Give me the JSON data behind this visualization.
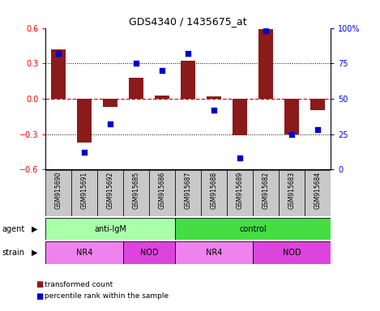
{
  "title": "GDS4340 / 1435675_at",
  "samples": [
    "GSM915690",
    "GSM915691",
    "GSM915692",
    "GSM915685",
    "GSM915686",
    "GSM915687",
    "GSM915688",
    "GSM915689",
    "GSM915682",
    "GSM915683",
    "GSM915684"
  ],
  "bar_values": [
    0.42,
    -0.37,
    -0.07,
    0.18,
    0.03,
    0.32,
    0.02,
    -0.31,
    0.59,
    -0.3,
    -0.1
  ],
  "dot_values": [
    82,
    12,
    32,
    75,
    70,
    82,
    42,
    8,
    98,
    25,
    28
  ],
  "bar_color": "#8B1A1A",
  "dot_color": "#0000CC",
  "ylim_left": [
    -0.6,
    0.6
  ],
  "ylim_right": [
    0,
    100
  ],
  "yticks_left": [
    -0.6,
    -0.3,
    0.0,
    0.3,
    0.6
  ],
  "yticks_right": [
    0,
    25,
    50,
    75,
    100
  ],
  "ytick_labels_right": [
    "0",
    "25",
    "50",
    "75",
    "100%"
  ],
  "hlines_dotted": [
    -0.3,
    0.3
  ],
  "hline_dashed": 0.0,
  "agent_groups": [
    {
      "label": "anti-IgM",
      "start": 0,
      "end": 5,
      "color": "#AAFFAA"
    },
    {
      "label": "control",
      "start": 5,
      "end": 11,
      "color": "#44DD44"
    }
  ],
  "strain_groups": [
    {
      "label": "NR4",
      "start": 0,
      "end": 3,
      "color": "#EE82EE"
    },
    {
      "label": "NOD",
      "start": 3,
      "end": 5,
      "color": "#DD44DD"
    },
    {
      "label": "NR4",
      "start": 5,
      "end": 8,
      "color": "#EE82EE"
    },
    {
      "label": "NOD",
      "start": 8,
      "end": 11,
      "color": "#DD44DD"
    }
  ],
  "legend_items": [
    {
      "label": "transformed count",
      "color": "#8B1A1A"
    },
    {
      "label": "percentile rank within the sample",
      "color": "#0000CC"
    }
  ],
  "bar_width": 0.55,
  "background_color": "#FFFFFF",
  "sample_box_color": "#C8C8C8",
  "row_label_agent": "agent",
  "row_label_strain": "strain"
}
